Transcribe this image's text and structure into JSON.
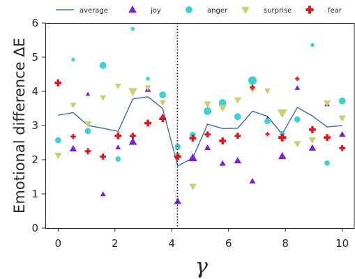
{
  "chart_data": {
    "type": "scatter",
    "xlabel": "γ",
    "ylabel": "Emotional difference ΔE",
    "xlim": [
      -0.45,
      10.45
    ],
    "ylim": [
      0,
      6
    ],
    "xticks": [
      0,
      2,
      4,
      6,
      8,
      10
    ],
    "yticks": [
      0,
      1,
      2,
      3,
      4,
      5,
      6
    ],
    "grid": false,
    "legend_position": "top",
    "vline": {
      "x": 4.2,
      "style": "dotted"
    },
    "series": [
      {
        "name": "average",
        "kind": "line",
        "color": "#4c72b0",
        "x": [
          0,
          0.53,
          1.05,
          1.58,
          2.11,
          2.63,
          3.16,
          3.68,
          4.21,
          4.74,
          5.26,
          5.79,
          6.32,
          6.84,
          7.37,
          7.89,
          8.42,
          8.95,
          9.47,
          10
        ],
        "y": [
          3.3,
          3.38,
          3.0,
          2.92,
          2.83,
          3.78,
          3.84,
          3.5,
          1.82,
          2.05,
          3.04,
          2.91,
          2.92,
          3.42,
          3.27,
          2.75,
          3.53,
          3.28,
          2.96,
          3.0
        ]
      },
      {
        "name": "joy",
        "kind": "scatter",
        "marker": "triangle-up",
        "color": "#7b1fd8",
        "x": [
          0.53,
          1.05,
          1.58,
          2.11,
          2.63,
          3.16,
          3.68,
          4.21,
          4.74,
          5.26,
          5.79,
          6.32,
          6.84,
          7.37,
          7.89,
          8.42,
          8.95,
          9.47,
          10
        ],
        "y": [
          2.32,
          3.92,
          0.99,
          2.36,
          2.52,
          4.05,
          3.27,
          0.78,
          2.05,
          2.35,
          1.89,
          1.97,
          1.37,
          3.2,
          2.1,
          4.1,
          2.34,
          3.62,
          2.74
        ],
        "sizes": [
          8,
          5,
          6,
          6,
          9,
          7,
          6,
          8,
          10,
          7,
          7,
          8,
          7,
          6,
          9,
          6,
          8,
          6,
          7
        ]
      },
      {
        "name": "anger",
        "kind": "scatter",
        "marker": "circle",
        "color": "#3fd1d6",
        "x": [
          0,
          0.53,
          1.05,
          1.58,
          2.11,
          2.63,
          3.16,
          3.68,
          4.21,
          4.74,
          5.26,
          5.79,
          6.32,
          6.84,
          7.37,
          7.89,
          8.42,
          8.95,
          9.47,
          10
        ],
        "y": [
          2.57,
          4.93,
          2.84,
          4.76,
          2.02,
          5.83,
          4.37,
          3.9,
          2.38,
          2.73,
          3.42,
          3.66,
          3.26,
          4.32,
          3.13,
          2.76,
          3.18,
          5.36,
          1.9,
          3.72
        ],
        "sizes": [
          8,
          5,
          8,
          9,
          7,
          5,
          5,
          9,
          8,
          8,
          10,
          10,
          9,
          11,
          8,
          7,
          8,
          5,
          7,
          9
        ]
      },
      {
        "name": "surprise",
        "kind": "scatter",
        "marker": "triangle-down",
        "color": "#c9cf74",
        "x": [
          0,
          0.53,
          1.05,
          1.58,
          2.11,
          2.63,
          3.16,
          3.68,
          4.21,
          4.74,
          5.26,
          5.79,
          6.32,
          6.84,
          7.37,
          7.89,
          8.42,
          8.95,
          9.47,
          10
        ],
        "y": [
          2.13,
          3.6,
          3.05,
          3.82,
          4.16,
          4.0,
          4.11,
          3.67,
          2.12,
          1.22,
          3.63,
          3.52,
          3.75,
          4.05,
          4.02,
          3.37,
          2.47,
          2.58,
          3.66,
          3.22
        ],
        "sizes": [
          8,
          7,
          8,
          7,
          7,
          10,
          7,
          7,
          7,
          8,
          8,
          9,
          8,
          7,
          7,
          11,
          8,
          8,
          8,
          8
        ]
      },
      {
        "name": "fear",
        "kind": "scatter",
        "marker": "plus",
        "color": "#e8141b",
        "x": [
          0,
          0.53,
          1.05,
          1.58,
          2.11,
          2.63,
          3.16,
          3.68,
          4.21,
          4.74,
          5.26,
          5.79,
          6.32,
          6.84,
          7.37,
          7.89,
          8.42,
          8.95,
          9.47,
          10
        ],
        "y": [
          4.25,
          2.68,
          2.25,
          2.09,
          2.7,
          2.7,
          3.07,
          3.2,
          2.09,
          2.63,
          2.74,
          2.55,
          2.7,
          4.12,
          2.75,
          2.65,
          4.37,
          2.88,
          2.65,
          2.34
        ],
        "sizes": [
          8,
          6,
          7,
          7,
          8,
          7,
          8,
          8,
          8,
          8,
          7,
          8,
          7,
          6,
          5,
          9,
          5,
          8,
          8,
          7
        ]
      }
    ]
  }
}
